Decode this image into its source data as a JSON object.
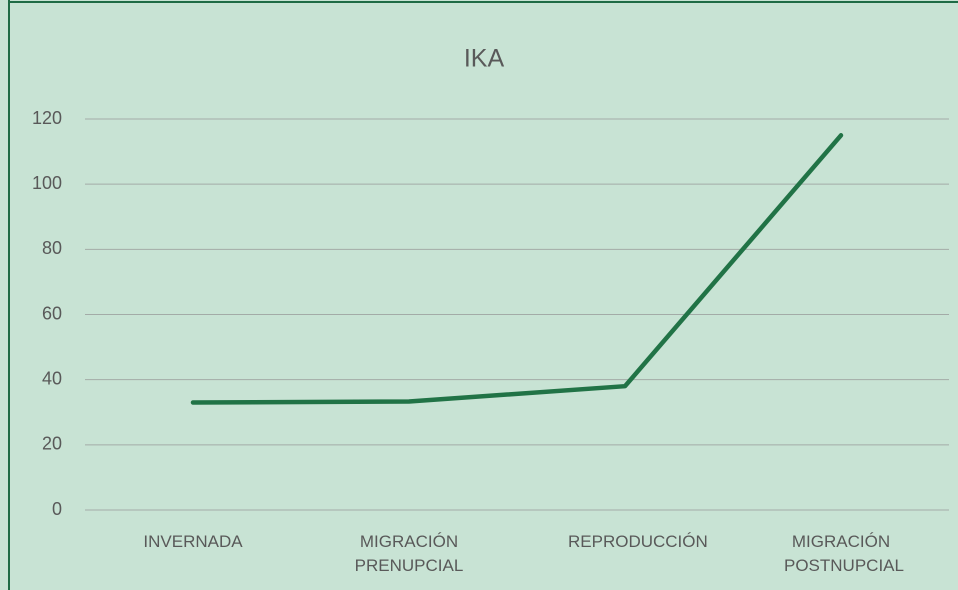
{
  "chart_data": {
    "type": "line",
    "title": "IKA",
    "categories": [
      "INVERNADA",
      "MIGRACIÓN PRENUPCIAL",
      "REPRODUCCIÓN",
      "MIGRACIÓN POSTNUPCIAL"
    ],
    "series": [
      {
        "name": "IKA",
        "color": "#217346",
        "values": [
          33,
          33.3,
          38,
          115
        ]
      }
    ],
    "ylim": [
      0,
      120
    ],
    "yticks": [
      0,
      20,
      40,
      60,
      80,
      100,
      120
    ],
    "grid": true
  }
}
